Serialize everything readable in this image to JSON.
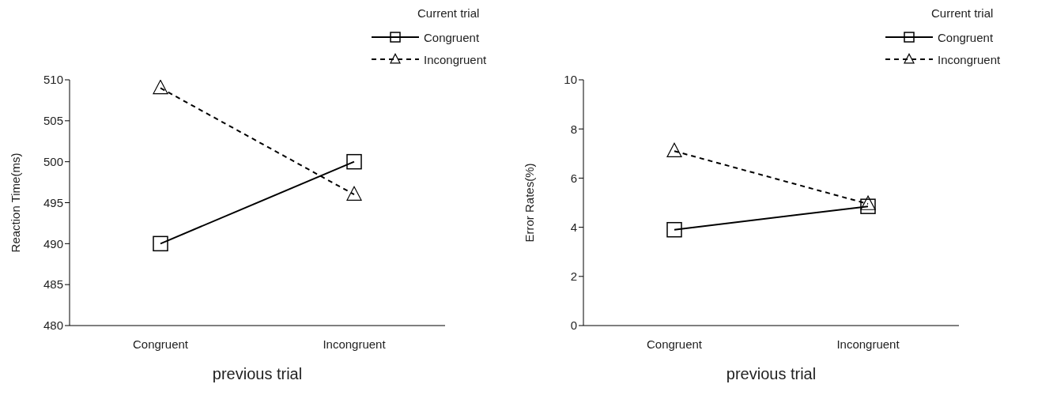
{
  "chart_data": [
    {
      "type": "line",
      "categories": [
        "Congruent",
        "Incongruent"
      ],
      "xlabel": "previous trial",
      "ylabel": "Reaction Time(ms)",
      "legend_title": "Current trial",
      "legend": "top right",
      "grid": false,
      "ylim": [
        480,
        510
      ],
      "yticks": [
        480,
        485,
        490,
        495,
        500,
        505,
        510
      ],
      "series": [
        {
          "name": "Congruent",
          "color": "#000000",
          "marker": "square",
          "line_style": "solid",
          "values": [
            490,
            500
          ]
        },
        {
          "name": "Incongruent",
          "color": "#000000",
          "marker": "triangle",
          "line_style": "dashed",
          "values": [
            509,
            496
          ]
        }
      ]
    },
    {
      "type": "line",
      "categories": [
        "Congruent",
        "Incongruent"
      ],
      "xlabel": "previous trial",
      "ylabel": "Error Rates(%)",
      "legend_title": "Current trial",
      "legend": "top right",
      "grid": false,
      "ylim": [
        0,
        10
      ],
      "yticks": [
        0,
        2,
        4,
        6,
        8,
        10
      ],
      "series": [
        {
          "name": "Congruent",
          "color": "#000000",
          "marker": "square",
          "line_style": "solid",
          "values": [
            3.9,
            4.85
          ]
        },
        {
          "name": "Incongruent",
          "color": "#000000",
          "marker": "triangle",
          "line_style": "dashed",
          "values": [
            7.1,
            4.95
          ]
        }
      ]
    }
  ]
}
